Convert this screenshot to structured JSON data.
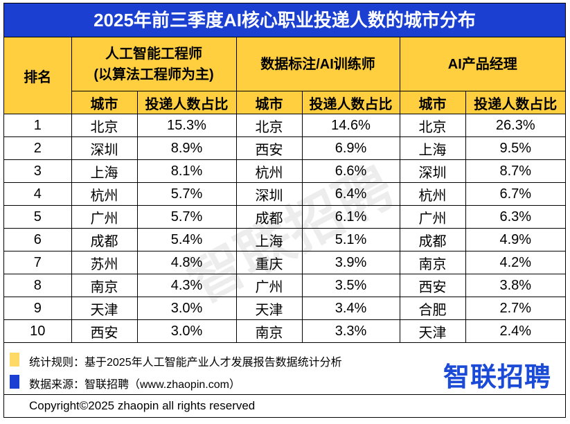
{
  "title": "2025年前三季度AI核心职业投递人数的城市分布",
  "header": {
    "rank": "排名",
    "groups": [
      {
        "lines": [
          "人工智能工程师",
          "(以算法工程师为主)"
        ]
      },
      {
        "lines": [
          "数据标注/AI训练师"
        ]
      },
      {
        "lines": [
          "AI产品经理"
        ]
      }
    ],
    "subheaders": [
      "城市",
      "投递人数占比",
      "城市",
      "投递人数占比",
      "城市",
      "投递人数占比"
    ]
  },
  "rows": [
    [
      "1",
      "北京",
      "15.3%",
      "北京",
      "14.6%",
      "北京",
      "26.3%"
    ],
    [
      "2",
      "深圳",
      "8.9%",
      "西安",
      "6.9%",
      "上海",
      "9.5%"
    ],
    [
      "3",
      "上海",
      "8.1%",
      "杭州",
      "6.6%",
      "深圳",
      "8.7%"
    ],
    [
      "4",
      "杭州",
      "5.7%",
      "深圳",
      "6.4%",
      "杭州",
      "6.7%"
    ],
    [
      "5",
      "广州",
      "5.7%",
      "成都",
      "6.1%",
      "广州",
      "6.3%"
    ],
    [
      "6",
      "成都",
      "5.4%",
      "上海",
      "5.1%",
      "成都",
      "4.9%"
    ],
    [
      "7",
      "苏州",
      "4.8%",
      "重庆",
      "3.9%",
      "南京",
      "4.2%"
    ],
    [
      "8",
      "南京",
      "4.3%",
      "广州",
      "3.5%",
      "西安",
      "3.8%"
    ],
    [
      "9",
      "天津",
      "3.0%",
      "天津",
      "3.4%",
      "合肥",
      "2.7%"
    ],
    [
      "10",
      "西安",
      "3.0%",
      "南京",
      "3.3%",
      "天津",
      "2.4%"
    ]
  ],
  "watermark": "智联招聘",
  "notes": [
    "统计规则：基于2025年人工智能产业人才发展报告数据统计分析",
    "数据来源：智联招聘（www.zhaopin.com）"
  ],
  "logo": "智联招聘",
  "copyright": "Copyright©2025 zhaopin all rights reserved"
}
